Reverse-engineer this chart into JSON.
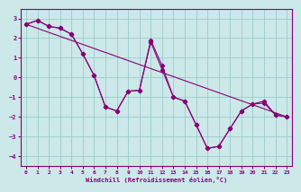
{
  "xlabel": "Windchill (Refroidissement éolien,°C)",
  "background_color": "#cce8e8",
  "grid_color": "#99cccc",
  "line_color": "#880077",
  "x_ticks": [
    0,
    1,
    2,
    3,
    4,
    5,
    6,
    7,
    8,
    9,
    10,
    11,
    12,
    13,
    14,
    15,
    16,
    17,
    18,
    19,
    20,
    21,
    22,
    23
  ],
  "y_ticks": [
    -4,
    -3,
    -2,
    -1,
    0,
    1,
    2,
    3
  ],
  "ylim": [
    -4.5,
    3.5
  ],
  "xlim": [
    -0.5,
    23.5
  ],
  "series1_x": [
    0,
    1,
    2,
    3,
    4,
    5,
    6,
    7,
    8,
    9,
    10,
    11,
    12,
    13,
    14,
    15,
    16,
    17,
    18,
    19,
    20,
    21,
    22,
    23
  ],
  "series1_y": [
    2.7,
    2.9,
    2.6,
    2.5,
    2.2,
    1.2,
    0.1,
    -1.5,
    -1.7,
    -0.7,
    -0.65,
    1.8,
    0.4,
    -1.0,
    -1.2,
    -2.4,
    -3.6,
    -3.5,
    -2.6,
    -1.7,
    -1.35,
    -1.3,
    -1.9,
    -2.0
  ],
  "series2_x": [
    0,
    1,
    2,
    3,
    4,
    5,
    6,
    7,
    8,
    9,
    10,
    11,
    12,
    13,
    14,
    15,
    16,
    17,
    18,
    19,
    20,
    21,
    22,
    23
  ],
  "series2_y": [
    2.7,
    2.9,
    2.6,
    2.5,
    2.2,
    1.2,
    0.1,
    -1.5,
    -1.7,
    -0.7,
    -0.65,
    1.9,
    0.6,
    -1.0,
    -1.2,
    -2.4,
    -3.6,
    -3.5,
    -2.6,
    -1.7,
    -1.35,
    -1.2,
    -1.9,
    -2.0
  ],
  "series3_x": [
    0,
    23
  ],
  "series3_y": [
    2.7,
    -2.0
  ]
}
